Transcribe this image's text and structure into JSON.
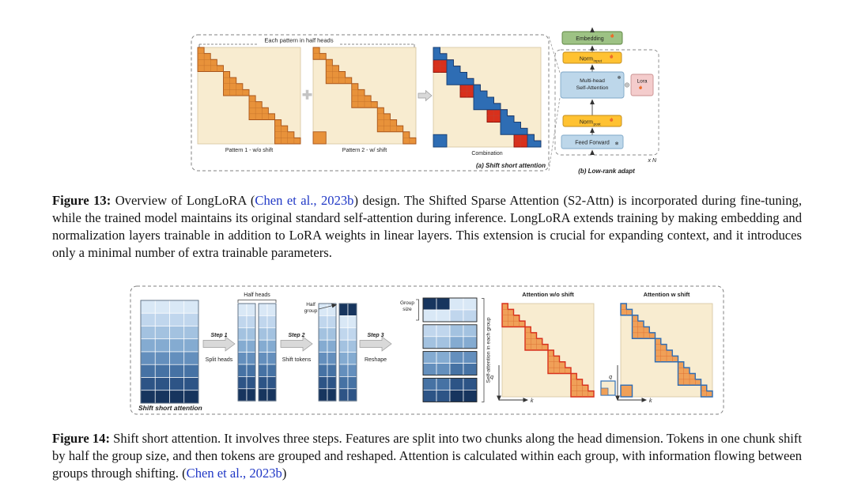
{
  "colors": {
    "cream": "#f8ecd0",
    "orange": "#e8923a",
    "orange_light": "#f0a058",
    "red": "#d8301c",
    "blue": "#2e6db4",
    "green": "#9dc284",
    "norm_orange": "#ffc232",
    "attn_blue": "#bdd7ea",
    "lora_pink": "#f4cccc",
    "arrow_gray": "#d9d9d9",
    "link": "#2038c6",
    "grad": [
      "#d9e8f6",
      "#c0d6ed",
      "#a3c2e0",
      "#84abd1",
      "#648fbd",
      "#4672a4",
      "#2d5486",
      "#17355e"
    ]
  },
  "fig13": {
    "graphic": {
      "half_heads_note": "Each pattern in half heads",
      "pattern1_label": "Pattern 1 - w/o shift",
      "pattern2_label": "Pattern 2 - w/ shift",
      "combination_label": "Combination",
      "sublabel_a": "(a) Shift short attention",
      "embedding": "Embedding",
      "norm_input": "Norm",
      "norm_input_sub": "input",
      "mhsa_line1": "Multi-head",
      "mhsa_line2": "Self-Attention",
      "lora": "Lora",
      "norm_post": "Norm",
      "norm_post_sub": "post",
      "feed_forward": "Feed Forward",
      "xn": "x N",
      "sublabel_b": "(b) Low-rank adapt"
    },
    "caption": {
      "label": "Figure 13:",
      "seg1": " Overview of LongLoRA (",
      "link": "Chen et al., 2023b",
      "seg2": ") design. The Shifted Sparse Attention (S2-Attn) is incorporated during fine-tuning, while the trained model maintains its original standard self-attention during inference. LongLoRA extends training by making embedding and normalization layers trainable in addition to LoRA weights in linear layers. This extension is crucial for expanding context, and it introduces only a minimal number of extra trainable parameters."
    }
  },
  "fig14": {
    "graphic": {
      "title": "Shift short attention",
      "half_heads": "Half heads",
      "half_group_l1": "Half",
      "half_group_l2": "group",
      "group_size_l1": "Group",
      "group_size_l2": "size",
      "step1": "Step 1",
      "step1_sub": "Split heads",
      "step2": "Step 2",
      "step2_sub": "Shift tokens",
      "step3": "Step 3",
      "step3_sub": "Reshape",
      "group_attn": "Self-attention in each group",
      "attn_wo": "Attention w/o shift",
      "attn_w": "Attention w shift",
      "q": "q",
      "k": "k"
    },
    "caption": {
      "label": "Figure 14:",
      "seg1": " Shift short attention. It involves three steps. Features are split into two chunks along the head dimension. Tokens in one chunk shift by half the group size, and then tokens are grouped and reshaped. Attention is calculated within each group, with information flowing between groups through shifting. (",
      "link": "Chen et al., 2023b",
      "seg2": ")"
    }
  }
}
